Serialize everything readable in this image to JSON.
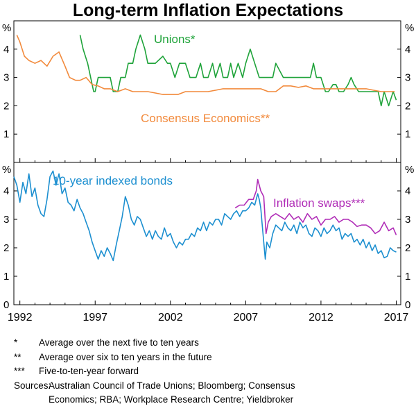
{
  "title": "Long-term Inflation Expectations",
  "chart_data": [
    {
      "type": "line",
      "panel": "top",
      "unit_label": "%",
      "ylim": [
        0,
        5
      ],
      "yticks": [
        1,
        2,
        3,
        4
      ],
      "xlim": [
        1991.6,
        2017.3
      ],
      "grid": false,
      "series": [
        {
          "name": "Unions*",
          "color": "#1fa33a",
          "label_position": "top-center",
          "x": [
            1996.0,
            1996.2,
            1996.5,
            1996.9,
            1997.0,
            1997.2,
            1997.3,
            1997.5,
            1997.8,
            1998.0,
            1998.2,
            1998.5,
            1998.7,
            1999.0,
            1999.2,
            1999.5,
            1999.7,
            2000.0,
            2000.3,
            2000.5,
            2000.7,
            2001.0,
            2001.5,
            2001.8,
            2002.0,
            2002.3,
            2002.6,
            2003.0,
            2003.3,
            2003.7,
            2004.0,
            2004.2,
            2004.5,
            2004.8,
            2005.0,
            2005.3,
            2005.5,
            2005.8,
            2006.0,
            2006.2,
            2006.5,
            2006.8,
            2007.0,
            2007.3,
            2007.6,
            2007.9,
            2008.2,
            2008.5,
            2008.8,
            2009.0,
            2009.5,
            2010.0,
            2010.5,
            2011.0,
            2011.3,
            2011.5,
            2011.7,
            2012.0,
            2012.3,
            2012.5,
            2012.8,
            2013.0,
            2013.2,
            2013.5,
            2013.8,
            2014.0,
            2014.2,
            2014.5,
            2014.8,
            2015.0,
            2015.3,
            2015.6,
            2015.8,
            2016.0,
            2016.2,
            2016.5,
            2016.8,
            2017.0
          ],
          "y": [
            4.5,
            4.0,
            3.5,
            2.5,
            2.5,
            3.0,
            3.0,
            3.0,
            3.0,
            3.0,
            2.5,
            2.5,
            3.0,
            3.0,
            3.5,
            3.5,
            4.0,
            4.5,
            4.0,
            3.5,
            3.5,
            3.5,
            3.75,
            3.5,
            3.5,
            3.0,
            3.5,
            3.5,
            3.0,
            3.0,
            3.5,
            3.0,
            3.0,
            3.5,
            3.0,
            3.5,
            3.0,
            3.0,
            3.5,
            3.0,
            3.5,
            3.0,
            3.5,
            4.0,
            3.5,
            3.0,
            3.0,
            3.0,
            3.0,
            3.5,
            3.0,
            3.0,
            3.0,
            3.0,
            3.0,
            3.5,
            3.0,
            3.0,
            2.5,
            2.5,
            2.75,
            2.75,
            2.5,
            2.5,
            2.75,
            3.0,
            2.75,
            2.5,
            2.5,
            2.5,
            2.5,
            2.5,
            2.5,
            2.0,
            2.5,
            2.0,
            2.5,
            2.2
          ]
        },
        {
          "name": "Consensus Economics**",
          "color": "#f28a3c",
          "label_position": "bottom-center",
          "x": [
            1991.8,
            1992.0,
            1992.3,
            1992.6,
            1993.0,
            1993.4,
            1993.8,
            1994.2,
            1994.6,
            1995.0,
            1995.3,
            1995.7,
            1996.0,
            1996.4,
            1996.8,
            1997.2,
            1997.6,
            1998.0,
            1998.5,
            1999.0,
            1999.5,
            2000.0,
            2000.5,
            2001.0,
            2001.5,
            2002.0,
            2002.5,
            2003.0,
            2003.5,
            2004.0,
            2004.5,
            2005.0,
            2005.5,
            2006.0,
            2006.5,
            2007.0,
            2007.5,
            2008.0,
            2008.5,
            2009.0,
            2009.5,
            2010.0,
            2010.5,
            2011.0,
            2011.5,
            2012.0,
            2012.5,
            2013.0,
            2013.5,
            2014.0,
            2014.5,
            2015.0,
            2015.5,
            2016.0,
            2016.5,
            2016.9
          ],
          "y": [
            4.5,
            4.25,
            3.75,
            3.6,
            3.5,
            3.6,
            3.4,
            3.75,
            3.9,
            3.4,
            3.0,
            2.9,
            2.9,
            3.0,
            2.75,
            2.7,
            2.6,
            2.6,
            2.5,
            2.6,
            2.5,
            2.5,
            2.5,
            2.45,
            2.4,
            2.4,
            2.4,
            2.5,
            2.5,
            2.5,
            2.5,
            2.55,
            2.6,
            2.6,
            2.6,
            2.6,
            2.6,
            2.6,
            2.5,
            2.5,
            2.7,
            2.7,
            2.65,
            2.7,
            2.6,
            2.6,
            2.6,
            2.6,
            2.6,
            2.6,
            2.6,
            2.6,
            2.55,
            2.5,
            2.5,
            2.5
          ]
        }
      ]
    },
    {
      "type": "line",
      "panel": "bottom",
      "unit_label": "%",
      "ylim": [
        0,
        5
      ],
      "yticks": [
        0,
        1,
        2,
        3,
        4
      ],
      "xlim": [
        1991.6,
        2017.3
      ],
      "xticks": [
        1992,
        1997,
        2002,
        2007,
        2012,
        2017
      ],
      "grid": false,
      "series": [
        {
          "name": "10-year indexed bonds",
          "color": "#1c8fd0",
          "label_position": "top-left",
          "x": [
            1991.6,
            1991.8,
            1992.0,
            1992.2,
            1992.4,
            1992.6,
            1992.8,
            1993.0,
            1993.2,
            1993.4,
            1993.6,
            1993.8,
            1994.0,
            1994.2,
            1994.4,
            1994.6,
            1994.8,
            1995.0,
            1995.2,
            1995.4,
            1995.6,
            1995.8,
            1996.0,
            1996.2,
            1996.4,
            1996.6,
            1996.8,
            1997.0,
            1997.2,
            1997.4,
            1997.6,
            1997.8,
            1998.0,
            1998.2,
            1998.4,
            1998.6,
            1998.8,
            1999.0,
            1999.2,
            1999.4,
            1999.6,
            1999.8,
            2000.0,
            2000.2,
            2000.4,
            2000.6,
            2000.8,
            2001.0,
            2001.2,
            2001.4,
            2001.6,
            2001.8,
            2002.0,
            2002.2,
            2002.4,
            2002.6,
            2002.8,
            2003.0,
            2003.2,
            2003.4,
            2003.6,
            2003.8,
            2004.0,
            2004.2,
            2004.4,
            2004.6,
            2004.8,
            2005.0,
            2005.2,
            2005.4,
            2005.6,
            2005.8,
            2006.0,
            2006.2,
            2006.4,
            2006.6,
            2006.8,
            2007.0,
            2007.2,
            2007.4,
            2007.6,
            2007.8,
            2007.9,
            2008.0,
            2008.1,
            2008.2,
            2008.3,
            2008.4,
            2008.6,
            2008.8,
            2009.0,
            2009.2,
            2009.4,
            2009.6,
            2009.8,
            2010.0,
            2010.2,
            2010.4,
            2010.6,
            2010.8,
            2011.0,
            2011.2,
            2011.4,
            2011.6,
            2011.8,
            2012.0,
            2012.2,
            2012.4,
            2012.6,
            2012.8,
            2013.0,
            2013.2,
            2013.4,
            2013.6,
            2013.8,
            2014.0,
            2014.2,
            2014.4,
            2014.6,
            2014.8,
            2015.0,
            2015.2,
            2015.4,
            2015.6,
            2015.8,
            2016.0,
            2016.2,
            2016.4,
            2016.6,
            2016.8,
            2017.0
          ],
          "y": [
            4.5,
            4.2,
            3.6,
            4.3,
            3.9,
            4.6,
            3.8,
            4.1,
            3.5,
            3.2,
            3.1,
            3.7,
            4.5,
            4.7,
            4.2,
            4.6,
            3.9,
            4.1,
            3.6,
            3.5,
            3.3,
            3.7,
            3.4,
            3.2,
            2.9,
            2.6,
            2.2,
            1.9,
            1.6,
            1.9,
            1.7,
            2.0,
            1.8,
            1.55,
            2.1,
            2.6,
            3.1,
            3.8,
            3.5,
            3.0,
            2.8,
            3.1,
            3.0,
            2.7,
            2.4,
            2.6,
            2.3,
            2.6,
            2.4,
            2.3,
            2.7,
            2.4,
            2.5,
            2.2,
            2.0,
            2.2,
            2.1,
            2.3,
            2.3,
            2.5,
            2.4,
            2.7,
            2.6,
            2.9,
            2.6,
            2.9,
            2.8,
            3.0,
            3.0,
            2.8,
            3.2,
            3.1,
            3.0,
            3.2,
            3.3,
            3.1,
            3.3,
            3.3,
            3.4,
            3.6,
            3.5,
            3.9,
            3.7,
            3.4,
            2.8,
            2.2,
            1.6,
            2.2,
            2.0,
            2.5,
            2.8,
            2.7,
            2.6,
            2.9,
            2.7,
            2.6,
            2.8,
            2.5,
            2.9,
            2.7,
            2.8,
            2.5,
            2.4,
            2.7,
            2.6,
            2.4,
            2.7,
            2.5,
            2.6,
            2.8,
            2.6,
            2.7,
            2.3,
            2.5,
            2.4,
            2.5,
            2.2,
            2.3,
            2.1,
            2.3,
            2.0,
            2.2,
            1.9,
            2.1,
            1.8,
            1.9,
            1.65,
            1.7,
            2.0,
            1.9,
            1.85
          ]
        },
        {
          "name": "Inflation swaps***",
          "color": "#b02cb7",
          "label_position": "right",
          "x": [
            2006.3,
            2006.6,
            2006.9,
            2007.2,
            2007.5,
            2007.7,
            2007.8,
            2008.0,
            2008.2,
            2008.35,
            2008.5,
            2008.7,
            2009.0,
            2009.3,
            2009.6,
            2009.9,
            2010.2,
            2010.5,
            2010.8,
            2011.1,
            2011.4,
            2011.7,
            2012.0,
            2012.3,
            2012.6,
            2012.9,
            2013.2,
            2013.5,
            2013.8,
            2014.1,
            2014.4,
            2014.7,
            2015.0,
            2015.3,
            2015.6,
            2015.9,
            2016.2,
            2016.5,
            2016.8,
            2017.0
          ],
          "y": [
            3.4,
            3.5,
            3.5,
            3.7,
            3.7,
            4.0,
            4.4,
            4.0,
            3.8,
            2.5,
            2.9,
            3.1,
            3.2,
            3.1,
            3.0,
            3.2,
            3.0,
            3.1,
            2.9,
            3.2,
            3.0,
            3.1,
            2.8,
            3.0,
            3.0,
            3.1,
            2.9,
            3.0,
            3.0,
            2.9,
            2.75,
            2.8,
            2.8,
            2.7,
            2.5,
            2.6,
            2.9,
            2.6,
            2.7,
            2.45
          ]
        }
      ]
    }
  ],
  "notes": [
    {
      "mark": "*",
      "text": "Average over the next five to ten years"
    },
    {
      "mark": "**",
      "text": "Average over six to ten years in the future"
    },
    {
      "mark": "***",
      "text": "Five-to-ten-year forward"
    }
  ],
  "sources": {
    "label": "Sources:",
    "text": "Australian Council of Trade Unions; Bloomberg; Consensus\nEconomics; RBA; Workplace Research Centre; Yieldbroker"
  }
}
